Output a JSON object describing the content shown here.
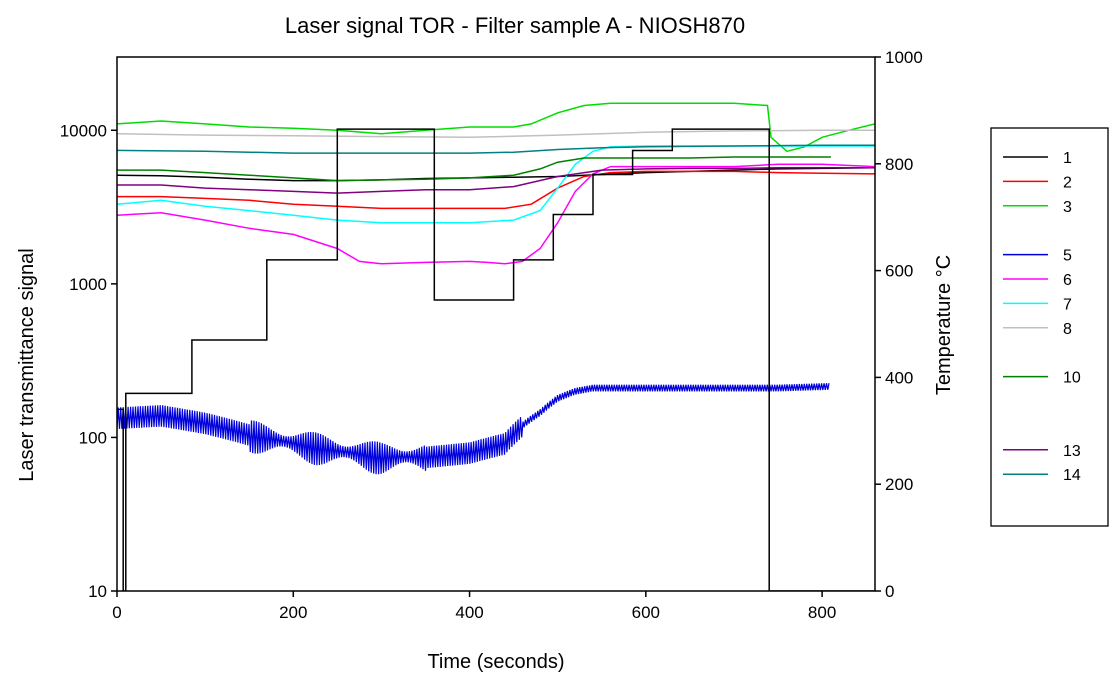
{
  "chart_data": {
    "type": "line",
    "title": "Laser signal TOR - Filter sample A - NIOSH870",
    "xlabel": "Time (seconds)",
    "ylabel": "Laser transmittance signal",
    "y2label": "Temperature °C",
    "xlim": [
      0,
      860
    ],
    "ylim": [
      10,
      30000
    ],
    "y_scale": "log",
    "y2lim": [
      0,
      1000
    ],
    "x_ticks": [
      "0",
      "200",
      "400",
      "600",
      "800"
    ],
    "y_ticks": [
      "10",
      "100",
      "1000",
      "10000"
    ],
    "y2_ticks": [
      "0",
      "200",
      "400",
      "600",
      "800",
      "1000"
    ],
    "grid": false,
    "legend_position": "right",
    "series": [
      {
        "name": "1",
        "color": "#000000",
        "axis": "left",
        "oscillating": false,
        "x": [
          0,
          50,
          100,
          150,
          200,
          250,
          300,
          350,
          400,
          450,
          500,
          550,
          600,
          650,
          700,
          750,
          800,
          860
        ],
        "y": [
          5100,
          5050,
          4950,
          4800,
          4700,
          4700,
          4750,
          4850,
          4900,
          4950,
          5000,
          5150,
          5300,
          5400,
          5500,
          5600,
          5650,
          5700
        ]
      },
      {
        "name": "2",
        "color": "#ff0000",
        "axis": "left",
        "oscillating": false,
        "x": [
          0,
          50,
          100,
          150,
          200,
          250,
          300,
          350,
          400,
          440,
          470,
          500,
          530,
          560,
          600,
          650,
          700,
          750,
          800,
          860
        ],
        "y": [
          3700,
          3700,
          3600,
          3500,
          3300,
          3200,
          3100,
          3100,
          3100,
          3100,
          3300,
          4200,
          5000,
          5300,
          5400,
          5400,
          5400,
          5300,
          5250,
          5200
        ]
      },
      {
        "name": "3",
        "color": "#00dd00",
        "axis": "left",
        "oscillating": false,
        "x": [
          0,
          50,
          100,
          150,
          200,
          250,
          300,
          350,
          400,
          450,
          470,
          500,
          530,
          560,
          600,
          650,
          700,
          738,
          742,
          760,
          780,
          800,
          830,
          860
        ],
        "y": [
          11000,
          11500,
          11000,
          10500,
          10300,
          10000,
          9500,
          10000,
          10500,
          10500,
          11000,
          13000,
          14500,
          15000,
          15000,
          15000,
          15000,
          14500,
          9000,
          7300,
          7800,
          9000,
          10000,
          11000
        ]
      },
      {
        "name": "5",
        "color": "#0000dd",
        "axis": "left",
        "oscillating": true,
        "x": [
          0,
          50,
          100,
          150,
          200,
          250,
          300,
          350,
          400,
          440,
          460,
          480,
          500,
          520,
          540,
          560,
          600,
          650,
          700,
          750,
          808
        ],
        "y": [
          135,
          140,
          125,
          105,
          92,
          82,
          75,
          75,
          80,
          92,
          120,
          145,
          180,
          200,
          210,
          210,
          210,
          210,
          210,
          210,
          215
        ]
      },
      {
        "name": "6",
        "color": "#ff00ff",
        "axis": "left",
        "oscillating": false,
        "x": [
          0,
          50,
          100,
          150,
          200,
          250,
          275,
          300,
          350,
          400,
          420,
          440,
          460,
          480,
          500,
          520,
          540,
          560,
          600,
          650,
          700,
          750,
          800,
          860
        ],
        "y": [
          2800,
          2900,
          2600,
          2300,
          2100,
          1700,
          1400,
          1350,
          1380,
          1400,
          1380,
          1350,
          1400,
          1700,
          2500,
          4000,
          5200,
          5800,
          5800,
          5800,
          5800,
          6000,
          6000,
          5800
        ]
      },
      {
        "name": "7",
        "color": "#00ffff",
        "axis": "left",
        "oscillating": false,
        "x": [
          0,
          50,
          100,
          150,
          200,
          250,
          300,
          350,
          400,
          450,
          480,
          500,
          520,
          540,
          560,
          600,
          650,
          700,
          750,
          800,
          860
        ],
        "y": [
          3300,
          3500,
          3200,
          3000,
          2800,
          2600,
          2500,
          2500,
          2500,
          2600,
          3000,
          4200,
          6000,
          7300,
          7800,
          7900,
          7900,
          7900,
          7900,
          7900,
          7900
        ]
      },
      {
        "name": "8",
        "color": "#c0c0c0",
        "axis": "left",
        "oscillating": false,
        "x": [
          0,
          100,
          200,
          300,
          400,
          500,
          600,
          700,
          800,
          860
        ],
        "y": [
          9500,
          9300,
          9200,
          9100,
          9000,
          9300,
          9700,
          9900,
          10000,
          10000
        ]
      },
      {
        "name": "10",
        "color": "#008000",
        "axis": "left",
        "oscillating": false,
        "x": [
          0,
          50,
          100,
          150,
          200,
          250,
          300,
          350,
          400,
          450,
          480,
          500,
          530,
          560,
          600,
          650,
          700,
          750,
          810
        ],
        "y": [
          5500,
          5500,
          5300,
          5100,
          4900,
          4700,
          4750,
          4800,
          4900,
          5100,
          5600,
          6200,
          6600,
          6600,
          6600,
          6600,
          6700,
          6700,
          6700
        ]
      },
      {
        "name": "13",
        "color": "#800080",
        "axis": "left",
        "oscillating": false,
        "x": [
          0,
          50,
          100,
          150,
          200,
          250,
          300,
          350,
          400,
          450,
          500,
          550,
          600,
          650,
          700,
          750,
          800,
          860
        ],
        "y": [
          4400,
          4400,
          4200,
          4100,
          4000,
          3900,
          4000,
          4100,
          4100,
          4300,
          5000,
          5500,
          5600,
          5650,
          5650,
          5700,
          5700,
          5700
        ]
      },
      {
        "name": "14",
        "color": "#008080",
        "axis": "left",
        "oscillating": false,
        "x": [
          0,
          100,
          200,
          300,
          400,
          450,
          500,
          550,
          600,
          700,
          800,
          860
        ],
        "y": [
          7400,
          7300,
          7100,
          7100,
          7100,
          7200,
          7500,
          7700,
          7800,
          7900,
          8000,
          8000
        ]
      },
      {
        "name": "",
        "color": "#000000",
        "axis": "right",
        "oscillating": false,
        "step": true,
        "x": [
          0,
          7,
          7,
          10,
          10,
          85,
          85,
          170,
          170,
          250,
          250,
          360,
          360,
          450,
          450,
          495,
          495,
          540,
          540,
          585,
          585,
          630,
          630,
          740,
          740,
          860
        ],
        "y": [
          340,
          340,
          0,
          0,
          370,
          370,
          470,
          470,
          620,
          620,
          865,
          865,
          545,
          545,
          620,
          620,
          705,
          705,
          780,
          780,
          825,
          825,
          865,
          865,
          0,
          0
        ]
      }
    ],
    "legend": [
      {
        "label": "1",
        "color": "#000000"
      },
      {
        "label": "2",
        "color": "#ff0000"
      },
      {
        "label": "3",
        "color": "#00dd00"
      },
      {
        "label": "",
        "color": ""
      },
      {
        "label": "5",
        "color": "#0000dd"
      },
      {
        "label": "6",
        "color": "#ff00ff"
      },
      {
        "label": "7",
        "color": "#00ffff"
      },
      {
        "label": "8",
        "color": "#c0c0c0"
      },
      {
        "label": "",
        "color": ""
      },
      {
        "label": "10",
        "color": "#008000"
      },
      {
        "label": "",
        "color": ""
      },
      {
        "label": "",
        "color": ""
      },
      {
        "label": "13",
        "color": "#800080"
      },
      {
        "label": "14",
        "color": "#008080"
      }
    ]
  }
}
